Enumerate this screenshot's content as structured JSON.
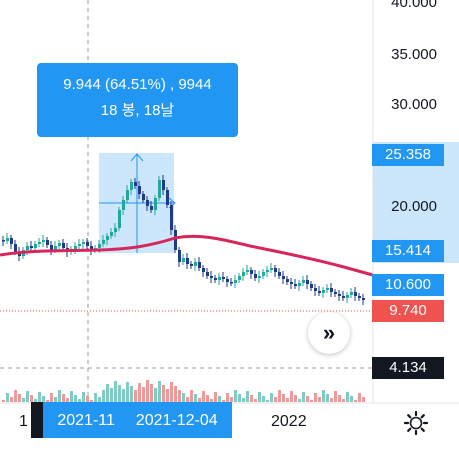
{
  "chart": {
    "tooltip": {
      "line1": "9.944 (64.51%) , 9944",
      "line2": "18 봉, 18날"
    },
    "price_axis": {
      "labels": [
        "40.000",
        "35.000",
        "30.000",
        "20.000"
      ],
      "tags": {
        "range_high": "25.358",
        "range_low": "15.414",
        "moving_average": "10.600",
        "last_price": "9.740",
        "crosshair": "4.134"
      }
    },
    "time_axis": {
      "labels": [
        "1",
        "2022"
      ],
      "highlight_start": "2021-11",
      "highlight_end": "2021-12-04"
    },
    "colors": {
      "up": "#26a69a",
      "down": "#1e3a8a",
      "ma_line": "#d8265b",
      "accent": "#2196f3",
      "last_price": "#ef5350"
    },
    "icons": {
      "scroll": "double-chevron-right-icon",
      "settings": "gear-icon"
    }
  }
}
